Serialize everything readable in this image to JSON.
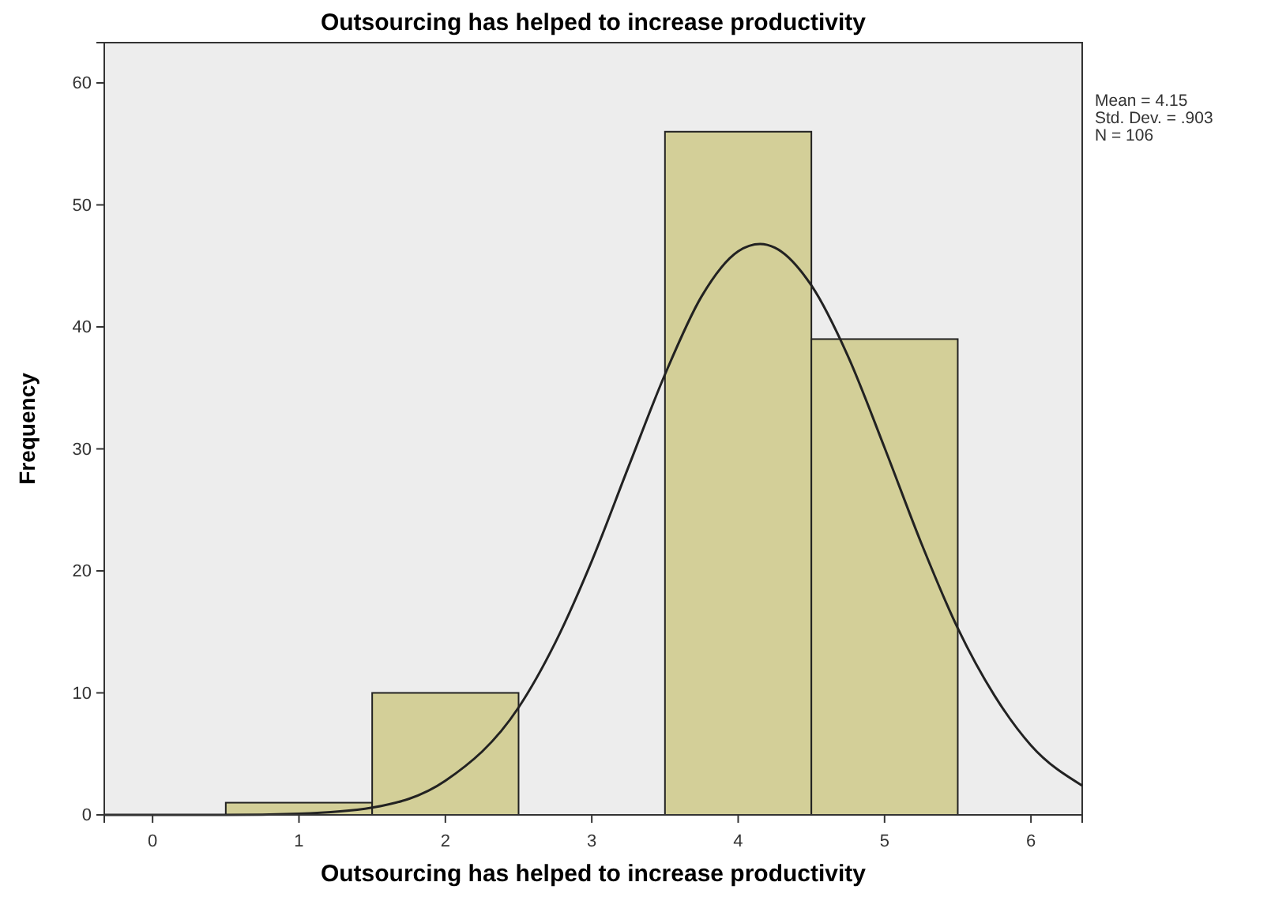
{
  "chart_data": {
    "type": "histogram",
    "title": "Outsourcing has helped to increase productivity",
    "xlabel": "Outsourcing has helped to increase productivity",
    "ylabel": "Frequency",
    "bins": [
      0.5,
      1.5,
      2.5,
      3.5,
      4.5,
      5.5
    ],
    "values": [
      1,
      10,
      0,
      56,
      39
    ],
    "color": "#d3cf98",
    "series": [
      {
        "type": "line",
        "color": "#222222",
        "x": [
          -0.33,
          0,
          0.5,
          1,
          1.5,
          2,
          2.5,
          2.75,
          3,
          3.25,
          3.5,
          3.75,
          4,
          4.15,
          4.25,
          4.5,
          4.75,
          5,
          5.25,
          5.5,
          5.75,
          6,
          6.35
        ],
        "values": [
          0,
          0,
          0,
          0.1,
          0.6,
          2.8,
          8.8,
          14.1,
          20.8,
          28.5,
          36.1,
          42.5,
          46.2,
          46.8,
          46.5,
          43.4,
          37.6,
          30.1,
          22.3,
          15.3,
          9.8,
          5.7,
          2.4
        ]
      }
    ],
    "xlim": [
      -0.33,
      6.35
    ],
    "xticks": [
      0,
      1,
      2,
      3,
      4,
      5,
      6
    ],
    "ylim": [
      0,
      63.3
    ],
    "yticks": [
      0,
      10,
      20,
      30,
      40,
      50,
      60
    ],
    "annotations": [
      "Mean = 4.15",
      "Std. Dev. = .903",
      "N = 106"
    ],
    "grid": false,
    "marker": "none",
    "line_style": "solid"
  }
}
